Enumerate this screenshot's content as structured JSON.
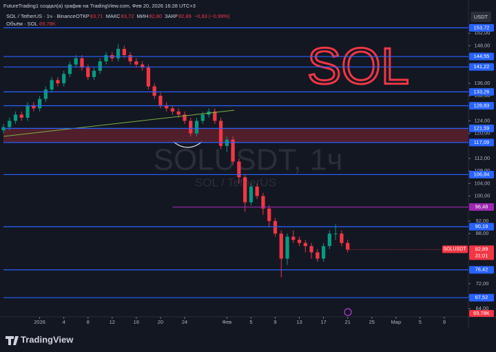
{
  "chart_data": {
    "type": "candlestick",
    "header": {
      "author": "FutureTrading1 создал(а) график на TradingView.com, Фев 20, 2026 16:28 UTC+3",
      "symbol": "SOL / TetherUS · 1ч · Binance",
      "stats": [
        {
          "label": "ОТКР",
          "value": "83,71"
        },
        {
          "label": "МАКС",
          "value": "83,72"
        },
        {
          "label": "МИН",
          "value": "82,80"
        },
        {
          "label": "ЗАКР",
          "value": "82,89"
        }
      ],
      "change": "−0,83 (−0,99%)",
      "volume_label": "Объём · SOL",
      "volume_value": "69,78K"
    },
    "currency": "USDT",
    "watermark": {
      "symbol": "SOLUSDT, 1ч",
      "name": "SOL / TetherUS"
    },
    "annotation": "SOL",
    "brand": "TradingView",
    "up_color": "#089981",
    "down_color": "#f23645",
    "xlim": [
      -6,
      71
    ],
    "ylim": [
      61.4,
      156
    ],
    "xticks": [
      {
        "value": 0,
        "label": "2026"
      },
      4,
      8,
      12,
      16,
      20,
      24,
      {
        "value": 31,
        "label": "Фев"
      },
      {
        "value": 35,
        "label": "5"
      },
      {
        "value": 39,
        "label": "9"
      },
      {
        "value": 43,
        "label": "13"
      },
      {
        "value": 47,
        "label": "17"
      },
      {
        "value": 51,
        "label": "21"
      },
      {
        "value": 55,
        "label": "25"
      },
      {
        "value": 59,
        "label": "Мар"
      },
      {
        "value": 63,
        "label": "5"
      },
      {
        "value": 67,
        "label": "9"
      }
    ],
    "yticks": [
      {
        "value": 152,
        "label": "152,00"
      },
      {
        "value": 148,
        "label": "148,00"
      },
      {
        "value": 136,
        "label": "136,00"
      },
      {
        "value": 132,
        "label": "132,00"
      },
      {
        "value": 124,
        "label": "124,00"
      },
      {
        "value": 120,
        "label": "120,00"
      },
      {
        "value": 112,
        "label": "112,00"
      },
      {
        "value": 108,
        "label": "108,00"
      },
      {
        "value": 104,
        "label": "104,00"
      },
      {
        "value": 100,
        "label": "100,00"
      },
      {
        "value": 92,
        "label": "92,00"
      },
      {
        "value": 88,
        "label": "88,00"
      },
      {
        "value": 72,
        "label": "72,00"
      },
      {
        "value": 68,
        "label": "68,00"
      },
      {
        "value": 64,
        "label": "64,00"
      }
    ],
    "candles": {
      "x": [
        -6,
        -5,
        -4,
        -3,
        -2,
        -1,
        0,
        1,
        2,
        3,
        4,
        5,
        6,
        7,
        8,
        9,
        10,
        11,
        12,
        13,
        14,
        15,
        16,
        17,
        18,
        19,
        20,
        21,
        22,
        23,
        24,
        25,
        26,
        27,
        28,
        29,
        30,
        31,
        32,
        33,
        34,
        35,
        36,
        37,
        38,
        39,
        40,
        41,
        42,
        43,
        44,
        45,
        46,
        47,
        48,
        49,
        50,
        51
      ],
      "open": [
        121,
        122,
        124,
        126,
        125,
        129,
        128,
        131,
        134,
        137,
        136,
        139,
        142,
        144,
        141,
        138,
        140,
        143,
        145,
        144,
        147,
        145,
        143,
        142,
        141,
        135,
        132,
        129,
        128,
        127,
        126,
        124,
        120,
        124,
        126,
        127,
        124,
        116,
        118,
        111,
        106,
        98,
        103,
        100,
        96,
        92,
        88,
        80,
        87,
        86,
        85,
        84,
        82,
        80,
        84,
        88,
        88,
        85
      ],
      "high": [
        123,
        125,
        127,
        127,
        130,
        130,
        132,
        135,
        138,
        138,
        140,
        143,
        145,
        145,
        142,
        141,
        144,
        146,
        146,
        148.5,
        148,
        146,
        144,
        143,
        142,
        136,
        133,
        130,
        129,
        128,
        127,
        125,
        125,
        127,
        128,
        128,
        125,
        119,
        119,
        112,
        107,
        104,
        104,
        101,
        97,
        93,
        89,
        88,
        89,
        87,
        86,
        85,
        83,
        85,
        89,
        91,
        89,
        86
      ],
      "low": [
        120,
        121,
        123,
        124,
        124,
        127,
        127,
        130,
        133,
        135,
        135,
        138,
        141,
        140,
        137,
        137,
        139,
        142,
        143,
        143,
        144,
        142,
        141,
        140,
        134,
        131,
        128,
        127,
        126,
        125,
        123,
        119,
        119,
        123,
        125,
        123,
        115,
        114,
        110,
        104,
        95,
        97,
        99,
        94,
        90,
        87,
        74,
        78,
        85,
        84,
        82,
        80,
        79,
        79,
        83,
        86,
        84,
        82
      ],
      "close": [
        122,
        124,
        126,
        125,
        129,
        128,
        131,
        134,
        137,
        136,
        139,
        142,
        144,
        141,
        138,
        140,
        143,
        145,
        144,
        147,
        145,
        143,
        142,
        141,
        135,
        132,
        129,
        128,
        127,
        126,
        124,
        120,
        124,
        126,
        127,
        124,
        116,
        118,
        111,
        106,
        98,
        103,
        100,
        96,
        92,
        88,
        80,
        87,
        86,
        85,
        84,
        82,
        80,
        84,
        88,
        88,
        85,
        82.89
      ]
    },
    "levels": [
      {
        "value": 153.72,
        "label": "153,72",
        "color": "#2962ff"
      },
      {
        "value": 144.55,
        "label": "144,55",
        "color": "#2962ff"
      },
      {
        "value": 141.22,
        "label": "141,22",
        "color": "#2962ff"
      },
      {
        "value": 133.26,
        "label": "133,26",
        "color": "#2962ff"
      },
      {
        "value": 128.83,
        "label": "128,83",
        "color": "#2962ff"
      },
      {
        "value": 121.59,
        "label": "121,59",
        "color": "#2962ff"
      },
      {
        "value": 117.09,
        "label": "117,09",
        "color": "#2962ff"
      },
      {
        "value": 106.84,
        "label": "106,84",
        "color": "#2962ff"
      },
      {
        "value": 96.48,
        "label": "96,48",
        "color": "#9c27b0",
        "x_start": 22
      },
      {
        "value": 90.19,
        "label": "90,19",
        "color": "#2962ff"
      },
      {
        "value": 76.42,
        "label": "76,42",
        "color": "#2962ff"
      },
      {
        "value": 67.52,
        "label": "67,52",
        "color": "#2962ff"
      }
    ],
    "zone": {
      "from": 117.09,
      "to": 121.59,
      "color": "rgba(242,54,69,0.28)"
    },
    "last": {
      "name": "SOLUSDT",
      "value": 82.89,
      "label": "82,89",
      "countdown": "31:01",
      "color": "#f23645"
    }
  }
}
